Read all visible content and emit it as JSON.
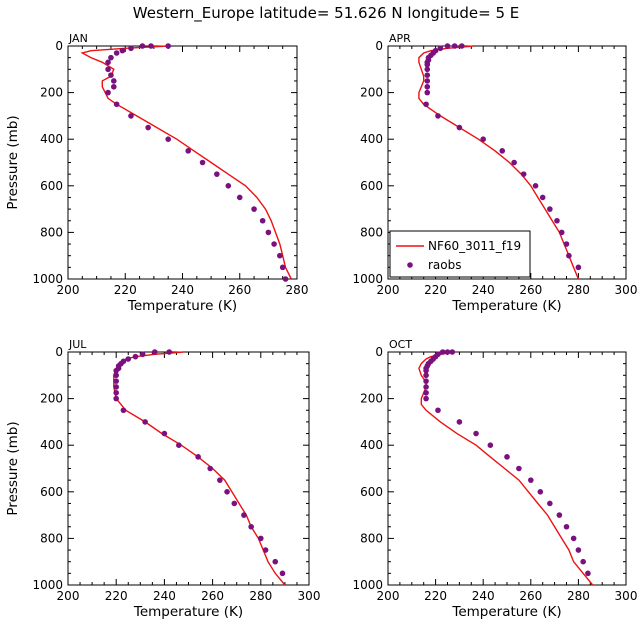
{
  "title": "Western_Europe  latitude= 51.626 N longitude= 5 E",
  "colors": {
    "model": "#ee1111",
    "obs": "#7a117e"
  },
  "legend": {
    "model_label": "NF60_3011_f19",
    "obs_label": "raobs"
  },
  "chart_data": [
    {
      "type": "scatter",
      "panel": "JAN",
      "xlabel": "Temperature (K)",
      "ylabel": "Pressure (mb)",
      "xlim": [
        200,
        280
      ],
      "ylim": [
        1000,
        0
      ],
      "xticks": [
        200,
        220,
        240,
        260,
        280
      ],
      "yticks": [
        0,
        200,
        400,
        600,
        800,
        1000
      ],
      "model": {
        "name": "NF60_3011_f19",
        "p": [
          0,
          10,
          20,
          30,
          50,
          70,
          100,
          130,
          150,
          175,
          200,
          225,
          250,
          300,
          350,
          400,
          450,
          500,
          550,
          600,
          650,
          700,
          750,
          800,
          850,
          900,
          950,
          1000
        ],
        "t": [
          235,
          220,
          208,
          205,
          208,
          212,
          216,
          215,
          212,
          212,
          213,
          214,
          217,
          224,
          231,
          238,
          244,
          250,
          256,
          262,
          266,
          269,
          271,
          272.5,
          274,
          275,
          276,
          278
        ]
      },
      "obs": {
        "name": "raobs",
        "p": [
          0,
          0,
          0,
          10,
          20,
          30,
          50,
          70,
          100,
          125,
          150,
          175,
          200,
          250,
          300,
          350,
          400,
          450,
          500,
          550,
          600,
          650,
          700,
          750,
          800,
          850,
          900,
          950,
          1000
        ],
        "t": [
          235,
          229,
          226,
          222,
          219,
          217,
          215,
          214,
          214,
          215,
          216,
          216,
          214,
          217,
          222,
          228,
          235,
          242,
          247,
          252,
          256,
          260,
          265,
          268,
          270,
          272,
          274,
          275,
          276
        ]
      }
    },
    {
      "type": "scatter",
      "panel": "APR",
      "xlabel": "Temperature (K)",
      "ylabel": "Pressure (mb)",
      "xlim": [
        200,
        300
      ],
      "ylim": [
        1000,
        0
      ],
      "xticks": [
        200,
        220,
        240,
        260,
        280,
        300
      ],
      "yticks": [
        0,
        200,
        400,
        600,
        800,
        1000
      ],
      "legend_position": "bottom-left",
      "model": {
        "name": "NF60_3011_f19",
        "p": [
          0,
          10,
          20,
          30,
          50,
          70,
          100,
          130,
          150,
          175,
          200,
          225,
          250,
          300,
          350,
          400,
          450,
          500,
          550,
          600,
          650,
          700,
          750,
          800,
          850,
          900,
          950,
          1000
        ],
        "t": [
          236,
          225,
          218,
          215,
          213,
          213,
          214,
          215,
          215,
          214,
          213,
          213,
          215,
          222,
          230,
          238,
          245,
          251,
          256,
          260,
          263,
          266,
          269,
          272,
          274,
          276,
          278,
          280
        ]
      },
      "obs": {
        "name": "raobs",
        "p": [
          0,
          0,
          0,
          10,
          20,
          30,
          40,
          50,
          60,
          70,
          80,
          100,
          125,
          150,
          175,
          200,
          250,
          300,
          350,
          400,
          450,
          500,
          550,
          600,
          650,
          700,
          750,
          800,
          850,
          900,
          950
        ],
        "t": [
          231,
          228,
          225,
          222,
          220,
          219,
          218,
          217,
          217,
          216.5,
          216.5,
          216.5,
          216.5,
          216.5,
          216.5,
          216.5,
          216,
          221,
          230,
          240,
          248,
          253,
          257,
          262,
          265,
          268,
          271,
          273,
          275,
          276,
          280
        ]
      }
    },
    {
      "type": "scatter",
      "panel": "JUL",
      "xlabel": "Temperature (K)",
      "ylabel": "Pressure (mb)",
      "xlim": [
        200,
        300
      ],
      "ylim": [
        1000,
        0
      ],
      "xticks": [
        200,
        220,
        240,
        260,
        280,
        300
      ],
      "yticks": [
        0,
        200,
        400,
        600,
        800,
        1000
      ],
      "model": {
        "name": "NF60_3011_f19",
        "p": [
          0,
          10,
          20,
          30,
          50,
          70,
          100,
          150,
          200,
          250,
          300,
          350,
          400,
          450,
          500,
          550,
          600,
          650,
          700,
          750,
          800,
          850,
          900,
          950,
          1000
        ],
        "t": [
          248,
          236,
          228,
          224,
          221,
          220,
          219,
          219,
          220,
          224,
          232,
          239,
          247,
          254,
          260,
          265,
          268,
          271,
          274,
          276,
          279,
          281,
          283,
          286,
          290
        ]
      },
      "obs": {
        "name": "raobs",
        "p": [
          0,
          0,
          10,
          20,
          30,
          40,
          50,
          60,
          70,
          80,
          100,
          125,
          150,
          175,
          200,
          250,
          300,
          350,
          400,
          450,
          500,
          550,
          600,
          650,
          700,
          750,
          800,
          850,
          900,
          950
        ],
        "t": [
          242,
          236,
          231,
          228,
          225,
          223,
          222,
          221,
          221,
          220,
          220,
          220,
          220,
          220,
          220,
          223,
          232,
          240,
          246,
          254,
          259,
          263,
          266,
          269,
          273,
          276,
          280,
          282,
          286,
          289
        ]
      }
    },
    {
      "type": "scatter",
      "panel": "OCT",
      "xlabel": "Temperature (K)",
      "ylabel": "Pressure (mb)",
      "xlim": [
        200,
        300
      ],
      "ylim": [
        1000,
        0
      ],
      "xticks": [
        200,
        220,
        240,
        260,
        280,
        300
      ],
      "yticks": [
        0,
        200,
        400,
        600,
        800,
        1000
      ],
      "model": {
        "name": "NF60_3011_f19",
        "p": [
          0,
          10,
          20,
          30,
          50,
          70,
          100,
          130,
          150,
          175,
          200,
          225,
          250,
          300,
          350,
          400,
          450,
          500,
          550,
          600,
          650,
          700,
          750,
          800,
          850,
          900,
          950,
          1000
        ],
        "t": [
          228,
          222,
          218,
          216,
          214,
          213,
          214,
          216,
          216,
          215,
          214,
          214,
          216,
          222,
          229,
          237,
          243,
          249,
          255,
          259,
          263,
          267,
          270,
          273,
          276,
          278,
          282,
          286
        ]
      },
      "obs": {
        "name": "raobs",
        "p": [
          0,
          0,
          0,
          10,
          20,
          30,
          40,
          50,
          60,
          70,
          80,
          100,
          125,
          150,
          175,
          200,
          250,
          300,
          350,
          400,
          450,
          500,
          550,
          600,
          650,
          700,
          750,
          800,
          850,
          900,
          950
        ],
        "t": [
          227,
          225,
          223,
          221,
          220,
          219,
          218,
          217,
          216.5,
          216,
          216,
          216,
          216,
          216,
          216,
          216,
          221,
          230,
          237,
          243,
          250,
          255,
          260,
          264,
          268,
          272,
          275,
          278,
          280,
          282,
          284
        ]
      }
    }
  ]
}
